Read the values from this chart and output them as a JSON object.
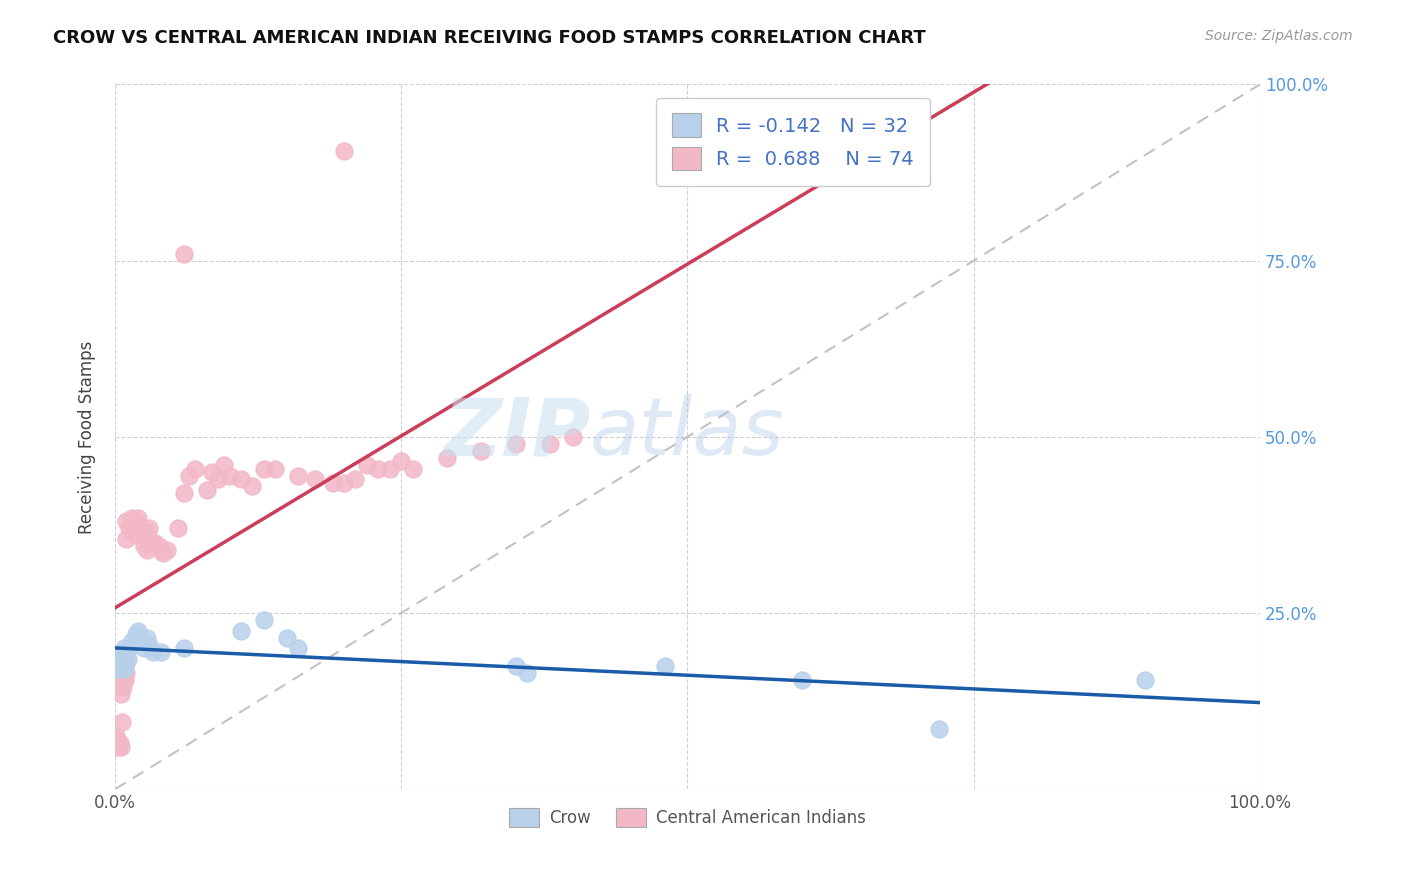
{
  "title": "CROW VS CENTRAL AMERICAN INDIAN RECEIVING FOOD STAMPS CORRELATION CHART",
  "source": "Source: ZipAtlas.com",
  "ylabel": "Receiving Food Stamps",
  "watermark_zip": "ZIP",
  "watermark_atlas": "atlas",
  "crow_R": -0.142,
  "crow_N": 32,
  "cai_R": 0.688,
  "cai_N": 74,
  "crow_color": "#b8d0ea",
  "cai_color": "#f2b8c6",
  "crow_line_color": "#1a5ca8",
  "cai_line_color": "#cc3d5a",
  "diagonal_color": "#b8b8b8",
  "grid_color": "#d0d0d0",
  "crow_points_x": [
    0.001,
    0.002,
    0.003,
    0.004,
    0.005,
    0.006,
    0.007,
    0.008,
    0.009,
    0.01,
    0.011,
    0.012,
    0.015,
    0.018,
    0.02,
    0.022,
    0.025,
    0.028,
    0.03,
    0.033,
    0.04,
    0.06,
    0.11,
    0.13,
    0.15,
    0.16,
    0.35,
    0.36,
    0.48,
    0.6,
    0.72,
    0.9
  ],
  "crow_points_y": [
    0.175,
    0.185,
    0.17,
    0.19,
    0.18,
    0.195,
    0.175,
    0.2,
    0.17,
    0.19,
    0.185,
    0.2,
    0.21,
    0.22,
    0.225,
    0.21,
    0.2,
    0.215,
    0.205,
    0.195,
    0.195,
    0.2,
    0.225,
    0.24,
    0.215,
    0.2,
    0.175,
    0.165,
    0.175,
    0.155,
    0.085,
    0.155
  ],
  "cai_points_x": [
    0.001,
    0.001,
    0.001,
    0.002,
    0.002,
    0.002,
    0.003,
    0.003,
    0.003,
    0.004,
    0.004,
    0.005,
    0.005,
    0.005,
    0.006,
    0.006,
    0.006,
    0.007,
    0.007,
    0.008,
    0.008,
    0.009,
    0.009,
    0.01,
    0.01,
    0.01,
    0.012,
    0.015,
    0.015,
    0.018,
    0.018,
    0.02,
    0.02,
    0.025,
    0.025,
    0.028,
    0.028,
    0.03,
    0.03,
    0.035,
    0.038,
    0.04,
    0.042,
    0.045,
    0.055,
    0.06,
    0.065,
    0.07,
    0.08,
    0.085,
    0.09,
    0.095,
    0.1,
    0.11,
    0.12,
    0.13,
    0.14,
    0.16,
    0.175,
    0.19,
    0.2,
    0.21,
    0.22,
    0.23,
    0.24,
    0.25,
    0.26,
    0.29,
    0.32,
    0.35,
    0.38,
    0.4,
    0.06,
    0.2
  ],
  "cai_points_y": [
    0.165,
    0.145,
    0.075,
    0.185,
    0.165,
    0.07,
    0.17,
    0.155,
    0.06,
    0.175,
    0.065,
    0.185,
    0.135,
    0.06,
    0.17,
    0.155,
    0.095,
    0.185,
    0.145,
    0.175,
    0.155,
    0.175,
    0.155,
    0.38,
    0.355,
    0.165,
    0.37,
    0.385,
    0.365,
    0.38,
    0.36,
    0.385,
    0.37,
    0.365,
    0.345,
    0.365,
    0.34,
    0.37,
    0.355,
    0.35,
    0.345,
    0.34,
    0.335,
    0.34,
    0.37,
    0.42,
    0.445,
    0.455,
    0.425,
    0.45,
    0.44,
    0.46,
    0.445,
    0.44,
    0.43,
    0.455,
    0.455,
    0.445,
    0.44,
    0.435,
    0.435,
    0.44,
    0.46,
    0.455,
    0.455,
    0.465,
    0.455,
    0.47,
    0.48,
    0.49,
    0.49,
    0.5,
    0.76,
    0.905
  ]
}
